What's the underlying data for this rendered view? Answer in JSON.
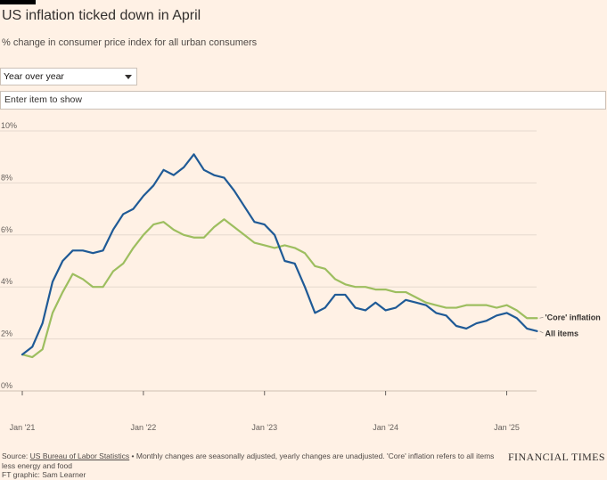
{
  "header": {
    "title": "US inflation ticked down in April",
    "subtitle": "% change in consumer price index for all urban consumers"
  },
  "controls": {
    "period_select_value": "Year over year",
    "item_input_placeholder": "Enter item to show"
  },
  "footer": {
    "source_label": "Source: ",
    "source_link": "US Bureau of Labor Statistics",
    "source_note": " • Monthly changes are seasonally adjusted, yearly changes are unadjusted. 'Core' inflation refers to all items less energy and food",
    "credit": "FT graphic: Sam Learner",
    "brand": "FINANCIAL TIMES"
  },
  "colors": {
    "background": "#fff1e5",
    "all_items": "#1f5a96",
    "core": "#9dbe5f",
    "grid": "#e6d9ce"
  },
  "chart_data": {
    "type": "line",
    "x_start": "2021-01",
    "x_end": "2025-04",
    "x_ticks": [
      "Jan '21",
      "Jan '22",
      "Jan '23",
      "Jan '24",
      "Jan '25"
    ],
    "y_ticks": [
      "10%",
      "8%",
      "6%",
      "4%",
      "2%",
      "0%"
    ],
    "ylim": [
      0,
      10
    ],
    "grid": true,
    "series": [
      {
        "name": "'Core' inflation",
        "key": "core",
        "values": [
          1.4,
          1.3,
          1.6,
          3.0,
          3.8,
          4.5,
          4.3,
          4.0,
          4.0,
          4.6,
          4.9,
          5.5,
          6.0,
          6.4,
          6.5,
          6.2,
          6.0,
          5.9,
          5.9,
          6.3,
          6.6,
          6.3,
          6.0,
          5.7,
          5.6,
          5.5,
          5.6,
          5.5,
          5.3,
          4.8,
          4.7,
          4.3,
          4.1,
          4.0,
          4.0,
          3.9,
          3.9,
          3.8,
          3.8,
          3.6,
          3.4,
          3.3,
          3.2,
          3.2,
          3.3,
          3.3,
          3.3,
          3.2,
          3.3,
          3.1,
          2.8,
          2.8
        ]
      },
      {
        "name": "All items",
        "key": "all_items",
        "values": [
          1.4,
          1.7,
          2.6,
          4.2,
          5.0,
          5.4,
          5.4,
          5.3,
          5.4,
          6.2,
          6.8,
          7.0,
          7.5,
          7.9,
          8.5,
          8.3,
          8.6,
          9.1,
          8.5,
          8.3,
          8.2,
          7.7,
          7.1,
          6.5,
          6.4,
          6.0,
          5.0,
          4.9,
          4.0,
          3.0,
          3.2,
          3.7,
          3.7,
          3.2,
          3.1,
          3.4,
          3.1,
          3.2,
          3.5,
          3.4,
          3.3,
          3.0,
          2.9,
          2.5,
          2.4,
          2.6,
          2.7,
          2.9,
          3.0,
          2.8,
          2.4,
          2.3
        ]
      }
    ]
  }
}
